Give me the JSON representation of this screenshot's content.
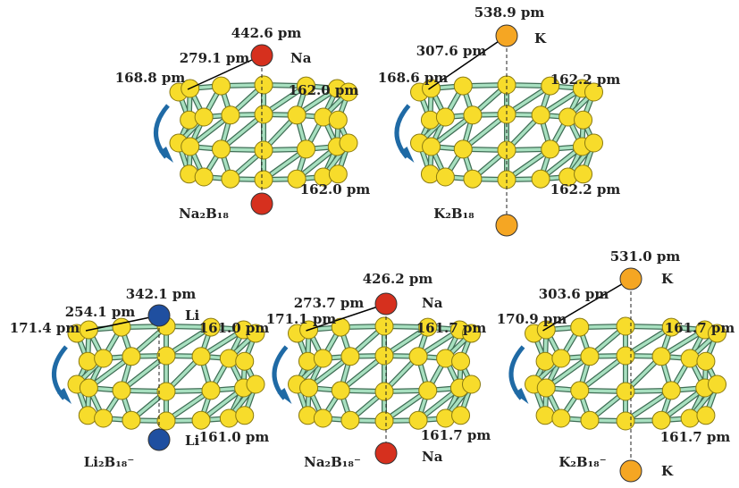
{
  "panels": [
    {
      "formula": "Na₂B₁₈",
      "atoms": [
        "Na"
      ],
      "measurements": {
        "top": "442.6 pm",
        "diagonal": "279.1 pm",
        "edge": "168.8 pm",
        "ring_top": "162.0 pm",
        "ring_bottom": "162.0 pm"
      }
    },
    {
      "formula": "K₂B₁₈",
      "atoms": [
        "K"
      ],
      "measurements": {
        "top": "538.9 pm",
        "diagonal": "307.6 pm",
        "edge": "168.6 pm",
        "ring_top": "162.2 pm",
        "ring_bottom": "162.2 pm"
      }
    },
    {
      "formula": "Li₂B₁₈⁻",
      "atoms": [
        "Li",
        "Li"
      ],
      "measurements": {
        "top": "342.1 pm",
        "diagonal": "254.1 pm",
        "edge": "171.4 pm",
        "ring_top": "161.0 pm",
        "ring_bottom": "161.0 pm"
      }
    },
    {
      "formula": "Na₂B₁₈⁻",
      "atoms": [
        "Na",
        "Na"
      ],
      "measurements": {
        "top": "426.2 pm",
        "diagonal": "273.7 pm",
        "edge": "171.1 pm",
        "ring_top": "161.7 pm",
        "ring_bottom": "161.7 pm"
      }
    },
    {
      "formula": "K₂B₁₈⁻",
      "atoms": [
        "K",
        "K"
      ],
      "measurements": {
        "top": "531.0 pm",
        "diagonal": "303.6 pm",
        "edge": "170.9 pm",
        "ring_top": "161.7 pm",
        "ring_bottom": "161.7 pm"
      }
    }
  ]
}
